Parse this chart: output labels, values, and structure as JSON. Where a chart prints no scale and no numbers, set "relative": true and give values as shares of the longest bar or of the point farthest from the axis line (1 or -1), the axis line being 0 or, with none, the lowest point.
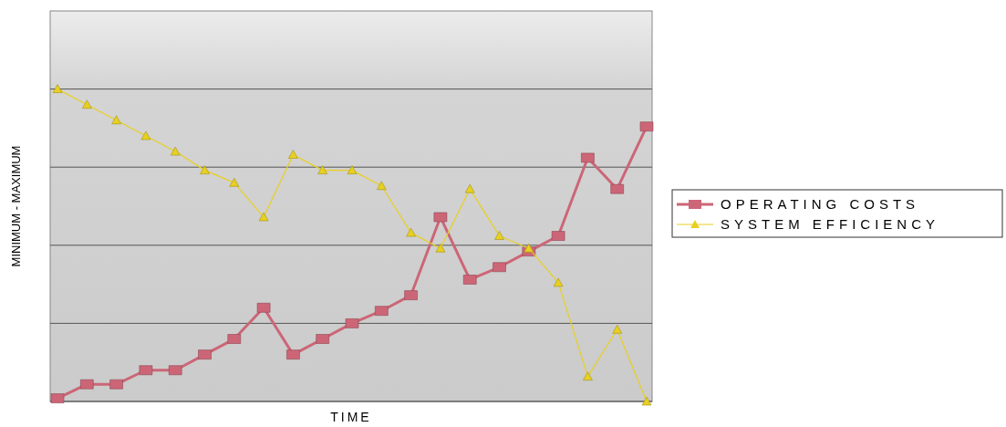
{
  "chart_data": {
    "type": "line",
    "relative": true,
    "xlabel": "TIME",
    "ylabel": "MINIMUM - MAXIMUM",
    "categories": [
      null,
      null,
      null,
      null,
      null,
      null,
      null,
      null,
      null,
      null,
      null,
      null,
      null,
      null,
      null,
      null,
      null,
      null,
      null,
      null,
      null
    ],
    "series": [
      {
        "name": "OPERATING COSTS",
        "color": "#cc6677",
        "marker": "square",
        "values": [
          0.01,
          0.055,
          0.055,
          0.1,
          0.1,
          0.15,
          0.2,
          0.3,
          0.15,
          0.2,
          0.25,
          0.29,
          0.34,
          0.59,
          0.39,
          0.43,
          0.48,
          0.53,
          0.78,
          0.68,
          0.88
        ]
      },
      {
        "name": "SYSTEM EFFICIENCY",
        "color": "#e8d020",
        "marker": "triangle",
        "values": [
          1,
          0.95,
          0.9,
          0.85,
          0.8,
          0.74,
          0.7,
          0.59,
          0.79,
          0.74,
          0.74,
          0.69,
          0.54,
          0.49,
          0.68,
          0.53,
          0.49,
          0.38,
          0.08,
          0.23,
          0
        ]
      }
    ],
    "grid": true,
    "legend": "right"
  }
}
